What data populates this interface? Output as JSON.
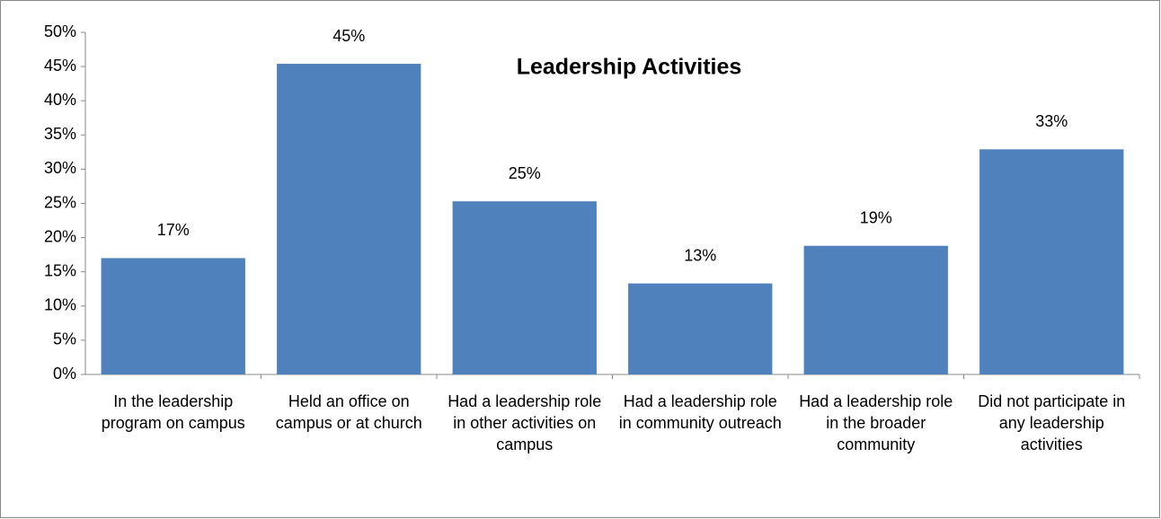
{
  "chart_data": {
    "type": "bar",
    "title": "Leadership Activities",
    "categories": [
      "In the leadership program on campus",
      "Held an office on campus or at church",
      "Had a leadership role in other activities on campus",
      "Had a leadership role in community outreach",
      "Had a leadership role in the broader community",
      "Did not participate in any leadership activities"
    ],
    "values": [
      17,
      45.4,
      25.3,
      13.3,
      18.8,
      32.9
    ],
    "value_labels": [
      "17%",
      "45%",
      "25%",
      "13%",
      "19%",
      "33%"
    ],
    "color": "#4f81bd",
    "ylim": [
      0,
      50
    ],
    "yticks": [
      {
        "value": 0,
        "label": "0%"
      },
      {
        "value": 5,
        "label": "5%"
      },
      {
        "value": 10,
        "label": "10%"
      },
      {
        "value": 15,
        "label": "15%"
      },
      {
        "value": 20,
        "label": "20%"
      },
      {
        "value": 25,
        "label": "25%"
      },
      {
        "value": 30,
        "label": "30%"
      },
      {
        "value": 35,
        "label": "35%"
      },
      {
        "value": 40,
        "label": "40%"
      },
      {
        "value": 45,
        "label": "45%"
      },
      {
        "value": 50,
        "label": "50%"
      }
    ]
  }
}
